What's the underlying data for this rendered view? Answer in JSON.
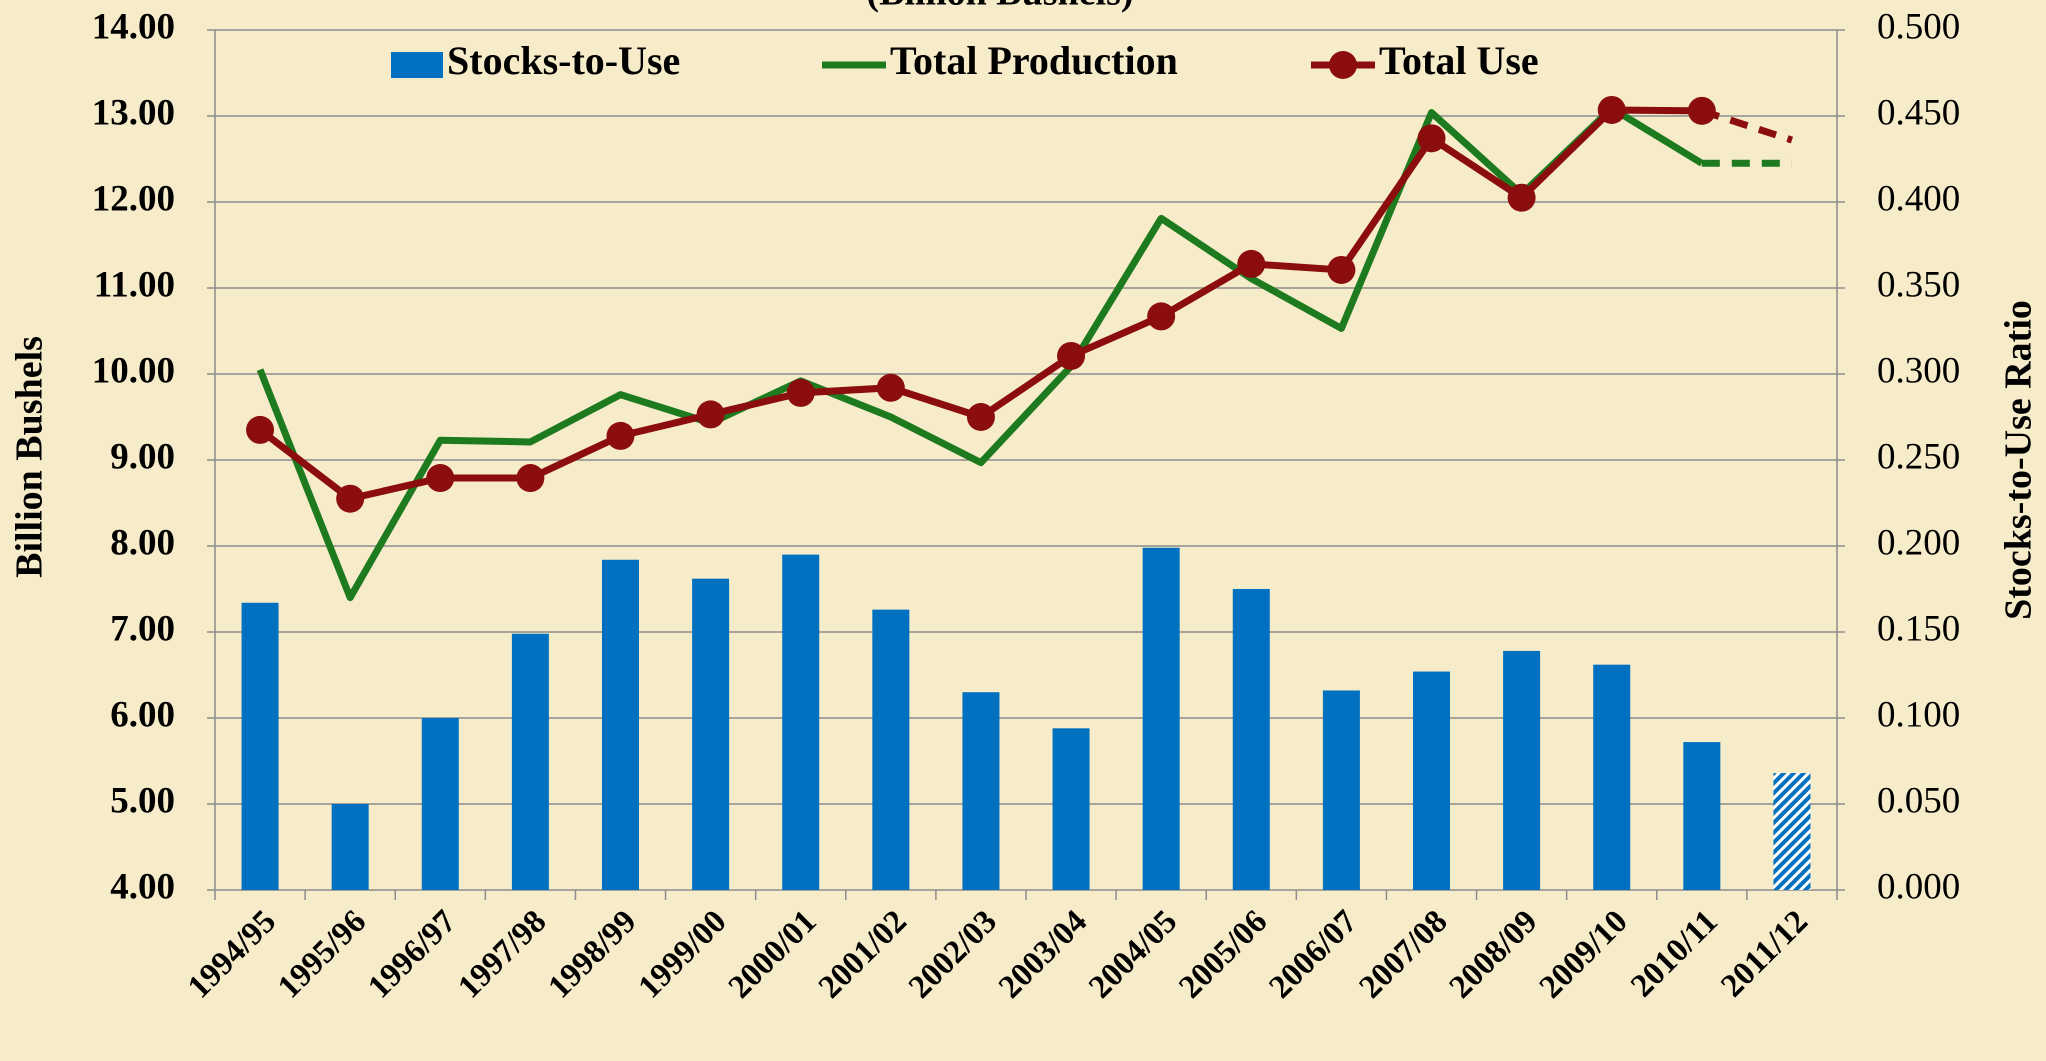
{
  "chart_data": {
    "type": "bar_line",
    "title": "(Billion Bushels)",
    "y_label": "Billion Bushels",
    "y2_label": "Stocks-to-Use Ratio",
    "categories": [
      "1994/95",
      "1995/96",
      "1996/97",
      "1997/98",
      "1998/99",
      "1999/00",
      "2000/01",
      "2001/02",
      "2002/03",
      "2003/04",
      "2004/05",
      "2005/06",
      "2006/07",
      "2007/08",
      "2008/09",
      "2009/10",
      "2010/11",
      "2011/12"
    ],
    "series": [
      {
        "name": "Stocks-to-Use",
        "type": "bar",
        "axis": "y2",
        "color": "#0070c0",
        "last_hatched": true,
        "values": [
          0.167,
          0.05,
          0.1,
          0.149,
          0.192,
          0.181,
          0.195,
          0.163,
          0.115,
          0.094,
          0.199,
          0.175,
          0.116,
          0.127,
          0.139,
          0.131,
          0.086,
          0.068
        ]
      },
      {
        "name": "Total Production",
        "type": "line",
        "axis": "y",
        "color": "#1e7a1e",
        "marker": false,
        "last_segment": "dashed",
        "values": [
          10.05,
          7.4,
          9.23,
          9.21,
          9.76,
          9.43,
          9.92,
          9.5,
          8.97,
          10.09,
          11.81,
          11.11,
          10.53,
          13.04,
          12.09,
          13.09,
          12.45,
          12.45
        ]
      },
      {
        "name": "Total Use",
        "type": "line",
        "axis": "y",
        "color": "#8b0d0d",
        "marker": true,
        "last_segment": "dashed",
        "values": [
          9.35,
          8.55,
          8.79,
          8.79,
          9.28,
          9.53,
          9.78,
          9.84,
          9.5,
          10.21,
          10.67,
          11.28,
          11.21,
          12.74,
          12.05,
          13.07,
          13.06,
          12.72
        ]
      }
    ],
    "ylim": [
      4,
      14
    ],
    "yticks": [
      {
        "value": 4,
        "label": "4.00"
      },
      {
        "value": 5,
        "label": "5.00"
      },
      {
        "value": 6,
        "label": "6.00"
      },
      {
        "value": 7,
        "label": "7.00"
      },
      {
        "value": 8,
        "label": "8.00"
      },
      {
        "value": 9,
        "label": "9.00"
      },
      {
        "value": 10,
        "label": "10.00"
      },
      {
        "value": 11,
        "label": "11.00"
      },
      {
        "value": 12,
        "label": "12.00"
      },
      {
        "value": 13,
        "label": "13.00"
      },
      {
        "value": 14,
        "label": "14.00"
      }
    ],
    "y2lim": [
      0,
      0.5
    ],
    "y2ticks": [
      {
        "value": 0,
        "label": "0.000"
      },
      {
        "value": 0.05,
        "label": "0.050"
      },
      {
        "value": 0.1,
        "label": "0.100"
      },
      {
        "value": 0.15,
        "label": "0.150"
      },
      {
        "value": 0.2,
        "label": "0.200"
      },
      {
        "value": 0.25,
        "label": "0.250"
      },
      {
        "value": 0.3,
        "label": "0.300"
      },
      {
        "value": 0.35,
        "label": "0.350"
      },
      {
        "value": 0.4,
        "label": "0.400"
      },
      {
        "value": 0.45,
        "label": "0.450"
      },
      {
        "value": 0.5,
        "label": "0.500"
      }
    ],
    "grid": true,
    "legend": "top"
  }
}
